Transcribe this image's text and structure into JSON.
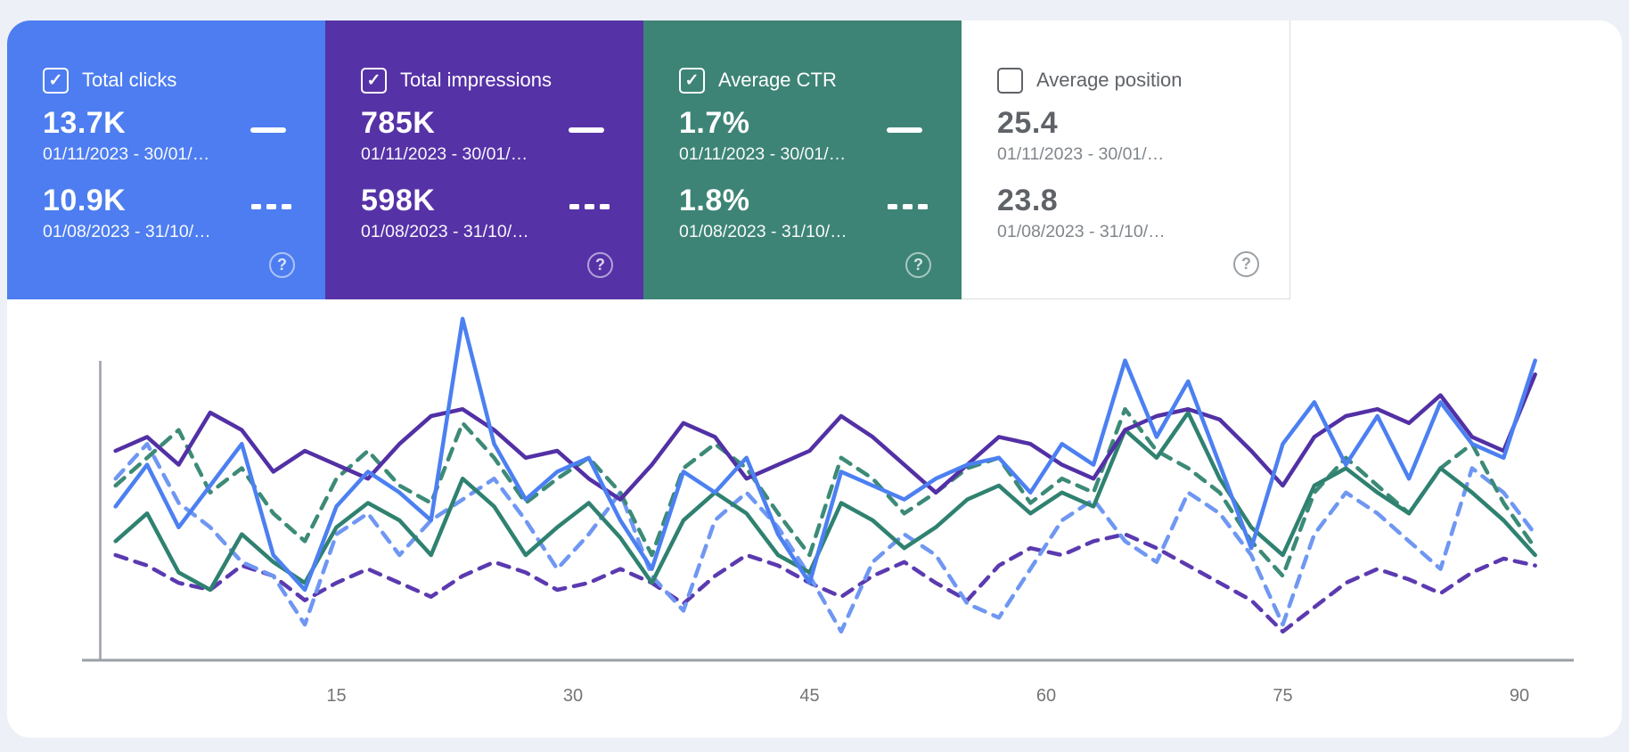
{
  "page": {
    "background": "#edf0f7",
    "panel_background": "#ffffff",
    "divider_color": "#dadce0"
  },
  "cards": [
    {
      "label": "Total clicks",
      "checked": true,
      "check_glyph": "✓",
      "bg": "#4d7df0",
      "help_glyph": "?",
      "current": {
        "value": "13.7K",
        "range": "01/11/2023 - 30/01/…"
      },
      "previous": {
        "value": "10.9K",
        "range": "01/08/2023 - 31/10/…"
      }
    },
    {
      "label": "Total impressions",
      "checked": true,
      "check_glyph": "✓",
      "bg": "#5632a7",
      "help_glyph": "?",
      "current": {
        "value": "785K",
        "range": "01/11/2023 - 30/01/…"
      },
      "previous": {
        "value": "598K",
        "range": "01/08/2023 - 31/10/…"
      }
    },
    {
      "label": "Average CTR",
      "checked": true,
      "check_glyph": "✓",
      "bg": "#3d8476",
      "help_glyph": "?",
      "current": {
        "value": "1.7%",
        "range": "01/11/2023 - 30/01/…"
      },
      "previous": {
        "value": "1.8%",
        "range": "01/08/2023 - 31/10/…"
      }
    },
    {
      "label": "Average position",
      "checked": false,
      "check_glyph": "",
      "bg": "#ffffff",
      "help_glyph": "?",
      "current": {
        "value": "25.4",
        "range": "01/11/2023 - 30/01/…"
      },
      "previous": {
        "value": "23.8",
        "range": "01/08/2023 - 31/10/…"
      }
    }
  ],
  "chart_data": {
    "type": "line",
    "title": "",
    "xlabel": "",
    "ylabel": "",
    "x_axis": {
      "ticks": [
        15,
        30,
        45,
        60,
        75,
        90
      ],
      "range": [
        0,
        92
      ]
    },
    "y_axis": {
      "labels_visible": false,
      "note": "each metric is drawn on its own hidden scale; values below are relative heights 0-100 of the plot band"
    },
    "axis_color": "#9aa0a6",
    "tick_label_color": "#757575",
    "grid": false,
    "legend_position": "in-metric-cards",
    "x_days": [
      1,
      3,
      5,
      7,
      9,
      11,
      13,
      15,
      17,
      19,
      21,
      23,
      25,
      27,
      29,
      31,
      33,
      35,
      37,
      39,
      41,
      43,
      45,
      47,
      49,
      51,
      53,
      55,
      57,
      59,
      61,
      63,
      65,
      67,
      69,
      71,
      73,
      75,
      77,
      79,
      81,
      83,
      85,
      87,
      89,
      91
    ],
    "series": [
      {
        "id": "impressions_previous",
        "metric": "Total impressions",
        "period": "01/08/2023 - 31/10/…",
        "style": "dashed",
        "color": "#5b3ab0",
        "values": [
          30,
          27,
          22,
          20,
          27,
          24,
          17,
          22,
          26,
          22,
          18,
          24,
          28,
          25,
          20,
          22,
          26,
          22,
          16,
          24,
          30,
          27,
          22,
          18,
          24,
          28,
          22,
          17,
          27,
          32,
          30,
          34,
          36,
          32,
          27,
          22,
          17,
          8,
          15,
          22,
          26,
          23,
          19,
          25,
          29,
          27
        ]
      },
      {
        "id": "clicks_previous",
        "metric": "Total clicks",
        "period": "01/08/2023 - 31/10/…",
        "style": "dashed",
        "color": "#6f97f2",
        "values": [
          52,
          62,
          45,
          38,
          28,
          24,
          10,
          36,
          42,
          30,
          40,
          46,
          52,
          40,
          26,
          36,
          48,
          24,
          14,
          40,
          48,
          38,
          24,
          8,
          28,
          36,
          30,
          16,
          12,
          26,
          40,
          46,
          34,
          28,
          48,
          42,
          30,
          10,
          36,
          48,
          42,
          34,
          26,
          55,
          48,
          36
        ]
      },
      {
        "id": "ctr_previous",
        "metric": "Average CTR",
        "period": "01/08/2023 - 31/10/…",
        "style": "dashed",
        "color": "#3c8a77",
        "values": [
          50,
          58,
          66,
          48,
          55,
          42,
          34,
          52,
          60,
          50,
          45,
          68,
          58,
          45,
          52,
          58,
          48,
          30,
          55,
          62,
          55,
          42,
          30,
          58,
          52,
          42,
          48,
          55,
          58,
          45,
          52,
          48,
          72,
          60,
          55,
          48,
          34,
          24,
          48,
          58,
          50,
          42,
          55,
          62,
          45,
          32
        ]
      },
      {
        "id": "ctr_current",
        "metric": "Average CTR",
        "period": "01/11/2023 - 30/01/…",
        "style": "solid",
        "color": "#2f8170",
        "values": [
          34,
          42,
          25,
          20,
          36,
          28,
          22,
          38,
          45,
          40,
          30,
          52,
          44,
          30,
          38,
          45,
          35,
          22,
          40,
          48,
          42,
          30,
          25,
          45,
          40,
          32,
          38,
          46,
          50,
          42,
          48,
          44,
          66,
          58,
          71,
          52,
          38,
          30,
          50,
          55,
          48,
          42,
          55,
          48,
          40,
          30
        ]
      },
      {
        "id": "impressions_current",
        "metric": "Total impressions",
        "period": "01/11/2023 - 30/01/…",
        "style": "solid",
        "color": "#5230a5",
        "values": [
          60,
          64,
          56,
          71,
          66,
          54,
          60,
          56,
          52,
          62,
          70,
          72,
          66,
          58,
          60,
          52,
          46,
          56,
          68,
          64,
          52,
          56,
          60,
          70,
          64,
          56,
          48,
          56,
          64,
          62,
          56,
          52,
          66,
          70,
          72,
          69,
          60,
          50,
          64,
          70,
          72,
          68,
          76,
          64,
          60,
          82
        ]
      },
      {
        "id": "clicks_current",
        "metric": "Total clicks",
        "period": "01/11/2023 - 30/01/…",
        "style": "solid",
        "color": "#4c80f1",
        "values": [
          44,
          56,
          38,
          50,
          62,
          30,
          20,
          44,
          54,
          48,
          40,
          98,
          62,
          46,
          54,
          58,
          40,
          26,
          54,
          48,
          58,
          36,
          22,
          54,
          50,
          46,
          52,
          56,
          58,
          48,
          62,
          56,
          86,
          64,
          80,
          56,
          32,
          62,
          74,
          56,
          70,
          52,
          74,
          62,
          58,
          86
        ]
      }
    ]
  }
}
